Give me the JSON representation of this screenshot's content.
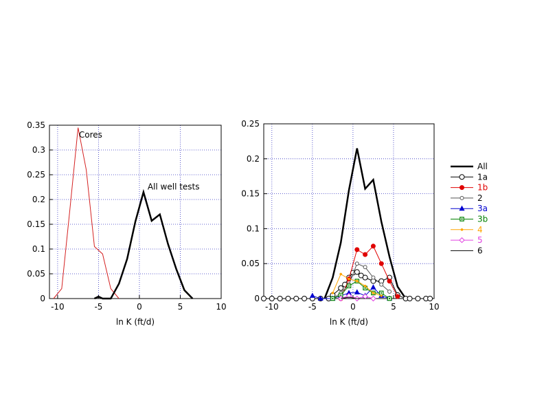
{
  "chart_data": [
    {
      "type": "line",
      "xlabel": "ln K (ft/d)",
      "ylabel": "",
      "xlim": [
        -11,
        10
      ],
      "ylim": [
        0,
        0.35
      ],
      "x_ticks": [
        -10,
        -5,
        0,
        5,
        10
      ],
      "x_tick_labels": [
        "-10",
        "-5",
        "0",
        "5",
        "10"
      ],
      "y_ticks": [
        0,
        0.05,
        0.1,
        0.15,
        0.2,
        0.25,
        0.3,
        0.35
      ],
      "y_tick_labels": [
        "0",
        "0.05",
        "0.1",
        "0.15",
        "0.2",
        "0.25",
        "0.3",
        "0.35"
      ],
      "grid": true,
      "annotations": [
        {
          "text": "Cores",
          "x": -7.4,
          "y": 0.325
        },
        {
          "text": "All well tests",
          "x": 1.0,
          "y": 0.22
        }
      ],
      "series": [
        {
          "color": "#d42020",
          "width": 1,
          "x": [
            -10.5,
            -9.5,
            -8.5,
            -7.5,
            -6.5,
            -5.5,
            -4.5,
            -3.5,
            -2.5
          ],
          "y": [
            0,
            0.02,
            0.18,
            0.345,
            0.26,
            0.105,
            0.09,
            0.02,
            0
          ]
        },
        {
          "color": "#000000",
          "width": 2.5,
          "x": [
            -5.5,
            -5,
            -4.5,
            -4,
            -3.5,
            -3,
            -2.5,
            -1.5,
            -0.5,
            0.5,
            1.5,
            2.5,
            3.5,
            4.5,
            5.5,
            6.5
          ],
          "y": [
            0,
            0.004,
            0,
            0,
            0,
            0.015,
            0.03,
            0.08,
            0.155,
            0.215,
            0.157,
            0.17,
            0.11,
            0.06,
            0.017,
            0
          ]
        }
      ]
    },
    {
      "type": "line",
      "xlabel": "ln K (ft/d)",
      "ylabel": "",
      "xlim": [
        -11,
        10
      ],
      "ylim": [
        0,
        0.25
      ],
      "x_ticks": [
        -10,
        -5,
        0,
        5,
        10
      ],
      "x_tick_labels": [
        "-10",
        "-5",
        "0",
        "5",
        "10"
      ],
      "y_ticks": [
        0,
        0.05,
        0.1,
        0.15,
        0.2,
        0.25
      ],
      "y_tick_labels": [
        "0",
        "0.05",
        "0.1",
        "0.15",
        "0.2",
        "0.25"
      ],
      "grid": true,
      "legend": "right",
      "series": [
        {
          "name": "All",
          "color": "#000000",
          "marker": "none",
          "width": 2.5,
          "x": [
            -3.5,
            -2.5,
            -1.5,
            -0.5,
            0.5,
            1.5,
            2.5,
            3.5,
            4.5,
            5.5,
            6.5
          ],
          "y": [
            0,
            0.03,
            0.08,
            0.155,
            0.215,
            0.157,
            0.17,
            0.11,
            0.06,
            0.017,
            0
          ]
        },
        {
          "name": "1a",
          "color": "#000000",
          "marker": "circle-open",
          "width": 1,
          "x": [
            -11,
            -10,
            -9,
            -8,
            -7,
            -6,
            -5,
            -4,
            -3,
            -2.5,
            -1.5,
            -1,
            -0.5,
            0,
            0.5,
            1,
            1.5,
            2.5,
            3.5,
            4.5,
            5.5,
            6.5,
            7,
            8,
            9,
            9.5
          ],
          "y": [
            0,
            0,
            0,
            0,
            0,
            0,
            0,
            0,
            0,
            0.005,
            0.015,
            0.02,
            0.03,
            0.037,
            0.038,
            0.033,
            0.03,
            0.025,
            0.025,
            0.03,
            0.005,
            0,
            0,
            0,
            0,
            0
          ]
        },
        {
          "name": "1b",
          "color": "#e00000",
          "marker": "circle-filled",
          "width": 1,
          "x": [
            -1.5,
            -0.5,
            0.5,
            1.5,
            2.5,
            3.5,
            4.5,
            5.5
          ],
          "y": [
            0,
            0.028,
            0.07,
            0.063,
            0.075,
            0.05,
            0.025,
            0.003
          ]
        },
        {
          "name": "2",
          "color": "#555555",
          "marker": "circle-open-small",
          "width": 1,
          "x": [
            -2.5,
            -1.5,
            -0.5,
            0.5,
            1.5,
            2.5,
            3.5,
            4.5
          ],
          "y": [
            0,
            0.008,
            0.02,
            0.05,
            0.045,
            0.03,
            0.02,
            0.01
          ]
        },
        {
          "name": "3a",
          "color": "#0000d0",
          "marker": "triangle",
          "width": 1,
          "x": [
            -5,
            -4,
            -2.5,
            -1.5,
            -0.5,
            0.5,
            1.5,
            2.5,
            3.5,
            4.5
          ],
          "y": [
            0.004,
            0,
            0,
            0.004,
            0.008,
            0.009,
            0.004,
            0.016,
            0.004,
            0
          ]
        },
        {
          "name": "3b",
          "color": "#008000",
          "marker": "square",
          "width": 1,
          "x": [
            -2.5,
            -1.5,
            -0.5,
            0.5,
            1.5,
            2.5,
            3.5,
            4.5
          ],
          "y": [
            0,
            0.005,
            0.018,
            0.025,
            0.015,
            0.008,
            0.008,
            0
          ]
        },
        {
          "name": "4",
          "color": "#ffa500",
          "marker": "dot",
          "width": 1,
          "x": [
            -2.5,
            -1.5,
            -0.5,
            0.5,
            1.5,
            2.5,
            3.5
          ],
          "y": [
            0.008,
            0.035,
            0.028,
            0.025,
            0.018,
            0.008,
            0.004
          ]
        },
        {
          "name": "5",
          "color": "#e040e0",
          "marker": "diamond-open",
          "width": 1,
          "x": [
            -1.5,
            -0.5,
            0.5,
            1.5,
            2.5
          ],
          "y": [
            0,
            0.004,
            0,
            0.003,
            0
          ]
        },
        {
          "name": "6",
          "color": "#000000",
          "marker": "none",
          "width": 1,
          "x": [
            -1.5,
            -0.5,
            0.5,
            1.5
          ],
          "y": [
            0,
            0.002,
            0,
            0
          ]
        }
      ]
    }
  ]
}
